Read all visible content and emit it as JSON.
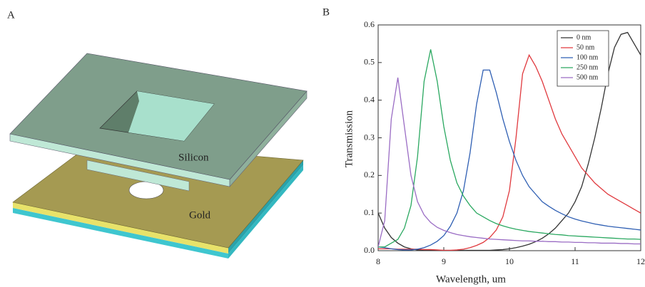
{
  "diagram": {
    "panel_label": "A",
    "labels": {
      "silicon": "Silicon",
      "gold": "Gold"
    }
  },
  "chart_data": {
    "type": "line",
    "panel_label": "B",
    "xlabel": "Wavelength, um",
    "ylabel": "Transmission",
    "xlim": [
      8,
      12
    ],
    "ylim": [
      0,
      0.6
    ],
    "xticks": [
      8,
      9,
      10,
      11,
      12
    ],
    "yticks": [
      {
        "value": 0,
        "label": "0.0"
      },
      0.1,
      0.2,
      0.3,
      0.4,
      0.5,
      0.6
    ],
    "legend": "upper right",
    "x": [
      8.0,
      8.1,
      8.2,
      8.3,
      8.4,
      8.5,
      8.6,
      8.7,
      8.8,
      8.9,
      9.0,
      9.1,
      9.2,
      9.3,
      9.4,
      9.5,
      9.6,
      9.7,
      9.8,
      9.9,
      10.0,
      10.1,
      10.2,
      10.3,
      10.4,
      10.5,
      10.6,
      10.7,
      10.8,
      10.9,
      11.0,
      11.1,
      11.2,
      11.3,
      11.4,
      11.5,
      11.6,
      11.7,
      11.8,
      11.9,
      12.0
    ],
    "series": [
      {
        "name": "0 nm",
        "color": "#333333",
        "values": [
          0.1,
          0.06,
          0.035,
          0.02,
          0.01,
          0.005,
          0.002,
          0.001,
          0.001,
          0.001,
          0.001,
          0.001,
          0.001,
          0.001,
          0.001,
          0.001,
          0.001,
          0.001,
          0.002,
          0.003,
          0.005,
          0.008,
          0.012,
          0.017,
          0.024,
          0.033,
          0.045,
          0.06,
          0.08,
          0.1,
          0.13,
          0.17,
          0.23,
          0.3,
          0.38,
          0.47,
          0.54,
          0.575,
          0.58,
          0.55,
          0.52
        ]
      },
      {
        "name": "50 nm",
        "color": "#e0393e",
        "values": [
          0.005,
          0.005,
          0.005,
          0.004,
          0.004,
          0.004,
          0.004,
          0.003,
          0.003,
          0.002,
          0.001,
          0.001,
          0.002,
          0.004,
          0.008,
          0.014,
          0.022,
          0.035,
          0.055,
          0.09,
          0.16,
          0.3,
          0.47,
          0.52,
          0.49,
          0.45,
          0.4,
          0.35,
          0.31,
          0.28,
          0.25,
          0.22,
          0.2,
          0.18,
          0.165,
          0.15,
          0.14,
          0.13,
          0.12,
          0.11,
          0.1
        ]
      },
      {
        "name": "100 nm",
        "color": "#2f5fb3",
        "values": [
          0.01,
          0.008,
          0.005,
          0.003,
          0.002,
          0.002,
          0.004,
          0.008,
          0.015,
          0.025,
          0.04,
          0.065,
          0.1,
          0.16,
          0.26,
          0.39,
          0.48,
          0.48,
          0.42,
          0.35,
          0.29,
          0.24,
          0.2,
          0.17,
          0.15,
          0.13,
          0.118,
          0.107,
          0.098,
          0.09,
          0.084,
          0.079,
          0.075,
          0.071,
          0.068,
          0.065,
          0.063,
          0.061,
          0.059,
          0.057,
          0.055
        ]
      },
      {
        "name": "250 nm",
        "color": "#2aa860",
        "values": [
          0.01,
          0.01,
          0.02,
          0.03,
          0.06,
          0.12,
          0.25,
          0.45,
          0.535,
          0.45,
          0.33,
          0.24,
          0.18,
          0.145,
          0.12,
          0.1,
          0.09,
          0.08,
          0.072,
          0.066,
          0.061,
          0.057,
          0.054,
          0.051,
          0.049,
          0.047,
          0.045,
          0.043,
          0.042,
          0.04,
          0.039,
          0.038,
          0.037,
          0.036,
          0.035,
          0.034,
          0.033,
          0.032,
          0.031,
          0.031,
          0.03
        ]
      },
      {
        "name": "500 nm",
        "color": "#9a6cc4",
        "values": [
          0.01,
          0.08,
          0.35,
          0.46,
          0.33,
          0.2,
          0.13,
          0.095,
          0.075,
          0.062,
          0.054,
          0.048,
          0.043,
          0.04,
          0.037,
          0.035,
          0.033,
          0.031,
          0.03,
          0.029,
          0.028,
          0.027,
          0.026,
          0.026,
          0.025,
          0.025,
          0.024,
          0.024,
          0.023,
          0.023,
          0.022,
          0.022,
          0.021,
          0.021,
          0.02,
          0.02,
          0.02,
          0.019,
          0.019,
          0.018,
          0.018
        ]
      }
    ]
  }
}
